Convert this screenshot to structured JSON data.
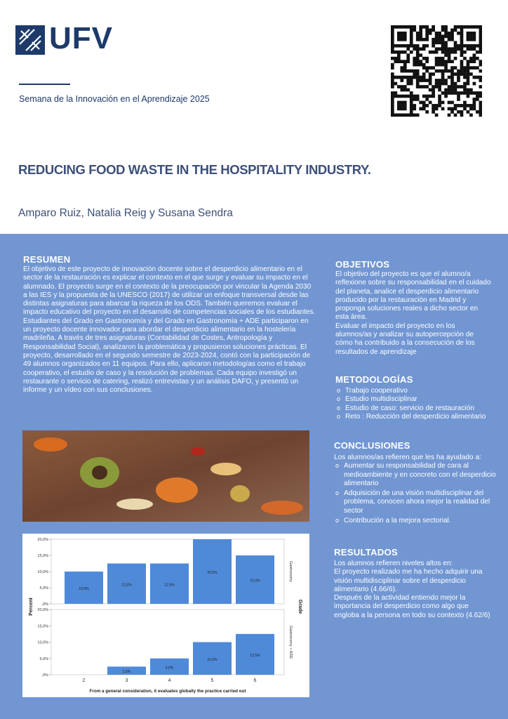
{
  "header": {
    "logo_text": "UFV",
    "event": "Semana de la Innovación en el Aprendizaje 2025",
    "title": "REDUCING FOOD WASTE IN THE HOSPITALITY INDUSTRY.",
    "authors": "Amparo Ruiz, Natalia Reig y Susana Sendra"
  },
  "resumen": {
    "heading": "RESUMEN",
    "paragraphs": [
      "El objetivo de este proyecto de innovación docente sobre el desperdicio alimentario en el sector de la restauración es explicar el contexto en el que surge y evaluar su impacto en el alumnado. El proyecto surge en el contexto de la preocupación por vincular la Agenda 2030 a las IES y la propuesta de la UNESCO (2017) de utilizar un enfoque transversal desde las distintas asignaturas para abarcar la riqueza de los ODS. También queremos evaluar el impacto educativo del proyecto en el desarrollo de competencias sociales de los estudiantes.",
      "Estudiantes del Grado en Gastronomía y del Grado en Gastronomía + ADE participaron en un proyecto docente innovador para abordar el desperdicio alimentario en la hostelería madrileña. A través de tres asignaturas (Contabilidad de Costes, Antropología y Responsabilidad Social), analizaron la problemática y propusieron soluciones prácticas. El proyecto, desarrollado en el segundo semestre de 2023-2024, contó con la participación de 49 alumnos organizados en 11 equipos. Para ello, aplicaron metodologías como el trabajo cooperativo, el estudio de caso y la resolución de problemas. Cada equipo investigó un restaurante o servicio de catering, realizó entrevistas y un análisis DAFO, y presentó un informe y un vídeo con sus conclusiones."
    ]
  },
  "objetivos": {
    "heading": "OBJETIVOS",
    "paragraphs": [
      "El objetivo del proyecto es que el alumno/a reflexione sobre su responsabilidad en el cuidado del planeta, analice el desperdicio alimentario producido por la restauración en Madrid y proponga soluciones reales a dicho sector en esta área.",
      "Evaluar el impacto del proyecto en los alumnos/as y analizar su autopercepción de cómo ha contribuido a la consecución de los resultados de aprendizaje"
    ]
  },
  "metodologias": {
    "heading": "METODOLOGÍAS",
    "items": [
      "Trabajo cooperativo",
      "Estudio multidisciplinar",
      "Estudio de caso: servicio de restauración",
      "Reto : Reducción del desperdicio alimentario"
    ]
  },
  "conclusiones": {
    "heading": "CONCLUSIONES",
    "intro": "Los alumnos/as refieren que les ha ayudado a:",
    "items": [
      "Aumentar su responsabilidad de cara al medioambiente y en concreto con el desperdicio alimentario",
      "Adquisición de una visión multidisciplinar del problema, conocen ahora mejor la realidad del sector",
      "Contribución a la  mejora sectorial."
    ]
  },
  "resultados": {
    "heading": "RESULTADOS",
    "paragraphs": [
      "Los alumnos refieren niveles altos en:",
      "El proyecto realizado me ha hecho adquirir una visión multidisciplinar  sobre el desperdicio alimentario (4.66/6).",
      "Después de la actividad entiendo mejor la importancia del desperdicio como algo que engloba a la persona en todo su contexto (4.62/6)"
    ]
  },
  "chart_data": {
    "type": "bar",
    "y_label": "Percent",
    "x_label": "From a general consideration, it evaluates globally the practice carried out",
    "facet_title": "Grade",
    "categories": [
      "2",
      "3",
      "4",
      "5",
      "6"
    ],
    "series": [
      {
        "name": "Gastronomy",
        "color": "#4f8ad9",
        "values": [
          10,
          12.5,
          12.5,
          20,
          15
        ],
        "value_labels": [
          "10,0%",
          "12,5%",
          "12,5%",
          "20,0%",
          "15,0%"
        ]
      },
      {
        "name": "Gastronomy + ADE",
        "color": "#4f8ad9",
        "values": [
          null,
          2.5,
          5,
          10,
          12.5
        ],
        "value_labels": [
          null,
          "2,5%",
          "5,0%",
          "10,0%",
          "12,5%"
        ]
      }
    ],
    "ylim": [
      0,
      20
    ],
    "yticks": [
      {
        "value": 0,
        "label": ",0%"
      },
      {
        "value": 5,
        "label": "5,0%"
      },
      {
        "value": 10,
        "label": "10,0%"
      },
      {
        "value": 15,
        "label": "15,0%"
      },
      {
        "value": 20,
        "label": "20,0%"
      }
    ]
  }
}
